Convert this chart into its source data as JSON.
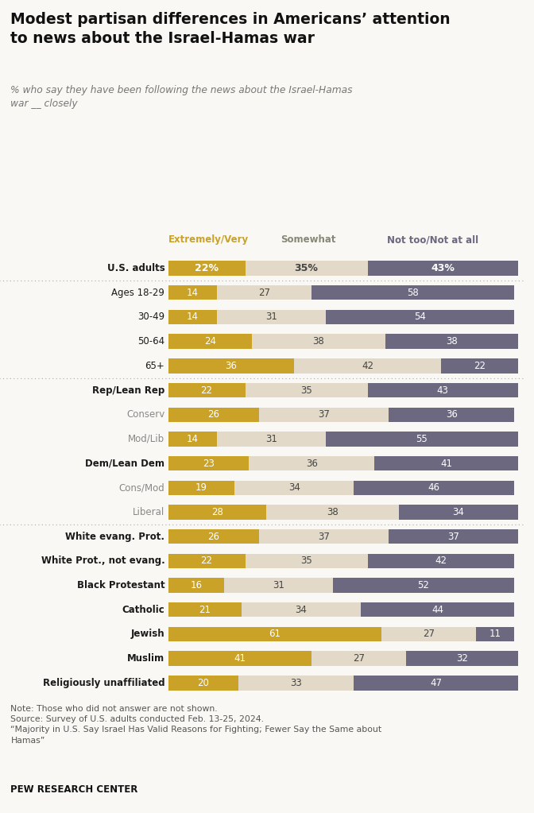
{
  "title": "Modest partisan differences in Americans’ attention\nto news about the Israel-Hamas war",
  "subtitle": "% who say they have been following the news about the Israel-Hamas\nwar __ closely",
  "legend_labels": [
    "Extremely/Very",
    "Somewhat",
    "Not too/Not at all"
  ],
  "colors": [
    "#C9A227",
    "#E2D9C8",
    "#6B6880"
  ],
  "categories": [
    "U.S. adults",
    "Ages 18-29",
    "30-49",
    "50-64",
    "65+",
    "Rep/Lean Rep",
    "Conserv",
    "Mod/Lib",
    "Dem/Lean Dem",
    "Cons/Mod",
    "Liberal",
    "White evang. Prot.",
    "White Prot., not evang.",
    "Black Protestant",
    "Catholic",
    "Jewish",
    "Muslim",
    "Religiously unaffiliated"
  ],
  "bold_labels": [
    "U.S. adults",
    "Rep/Lean Rep",
    "Dem/Lean Dem",
    "White evang. Prot.",
    "White Prot., not evang.",
    "Black Protestant",
    "Catholic",
    "Jewish",
    "Muslim",
    "Religiously unaffiliated"
  ],
  "gray_labels": [
    "Conserv",
    "Mod/Lib",
    "Cons/Mod",
    "Liberal"
  ],
  "values": [
    [
      22,
      35,
      43
    ],
    [
      14,
      27,
      58
    ],
    [
      14,
      31,
      54
    ],
    [
      24,
      38,
      38
    ],
    [
      36,
      42,
      22
    ],
    [
      22,
      35,
      43
    ],
    [
      26,
      37,
      36
    ],
    [
      14,
      31,
      55
    ],
    [
      23,
      36,
      41
    ],
    [
      19,
      34,
      46
    ],
    [
      28,
      38,
      34
    ],
    [
      26,
      37,
      37
    ],
    [
      22,
      35,
      42
    ],
    [
      16,
      31,
      52
    ],
    [
      21,
      34,
      44
    ],
    [
      61,
      27,
      11
    ],
    [
      41,
      27,
      32
    ],
    [
      20,
      33,
      47
    ]
  ],
  "separator_after": [
    0,
    4,
    10
  ],
  "note_text": "Note: Those who did not answer are not shown.\nSource: Survey of U.S. adults conducted Feb. 13-25, 2024.\n“Majority in U.S. Say Israel Has Valid Reasons for Fighting; Fewer Say the Same about\nHamas”",
  "footer": "PEW RESEARCH CENTER",
  "background_color": "#F9F8F4"
}
